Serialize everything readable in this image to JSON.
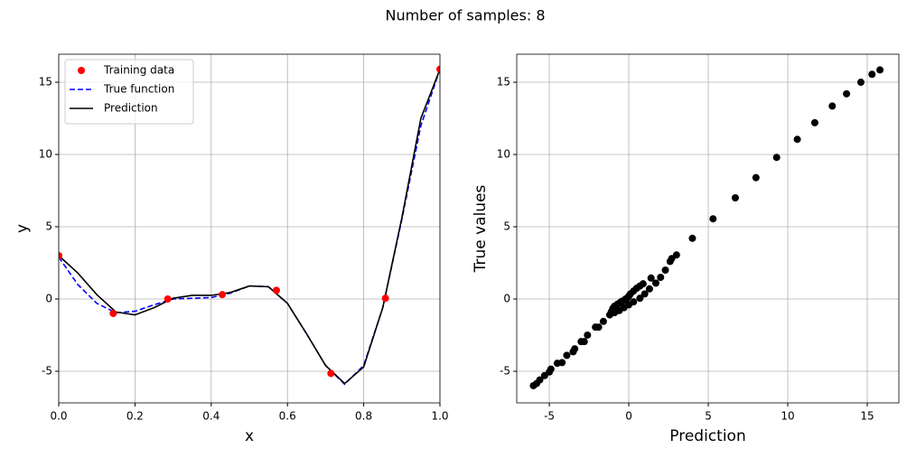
{
  "title": "Number of samples: 8",
  "chart_data": [
    {
      "type": "line",
      "xlabel": "x",
      "ylabel": "y",
      "xlim": [
        0,
        1
      ],
      "ylim": [
        -7.19,
        16.94
      ],
      "xticks": [
        {
          "value": 0,
          "label": "0.0"
        },
        {
          "value": 0.2,
          "label": "0.2"
        },
        {
          "value": 0.4,
          "label": "0.4"
        },
        {
          "value": 0.6,
          "label": "0.6"
        },
        {
          "value": 0.8,
          "label": "0.8"
        },
        {
          "value": 1,
          "label": "1.0"
        }
      ],
      "yticks": [
        -5,
        0,
        5,
        10,
        15
      ],
      "grid": true,
      "legend": "upper left",
      "series": [
        {
          "name": "Training data",
          "color": "#ff0000",
          "style": "markers",
          "x": [
            0,
            0.143,
            0.286,
            0.429,
            0.571,
            0.714,
            0.857,
            1
          ],
          "values": [
            3.0,
            -1.0,
            0.0,
            0.3,
            0.6,
            -5.15,
            0.05,
            15.9
          ]
        },
        {
          "name": "True function",
          "color": "#0000ff",
          "style": "dashed",
          "x": [
            0,
            0.05,
            0.1,
            0.15,
            0.2,
            0.25,
            0.3,
            0.35,
            0.4,
            0.45,
            0.5,
            0.55,
            0.6,
            0.65,
            0.7,
            0.75,
            0.8,
            0.85,
            0.9,
            0.95,
            1
          ],
          "values": [
            2.9,
            1.0,
            -0.3,
            -0.95,
            -0.85,
            -0.4,
            0.0,
            0.05,
            0.1,
            0.4,
            0.9,
            0.85,
            -0.3,
            -2.4,
            -4.6,
            -5.9,
            -4.6,
            -0.6,
            5.5,
            12.0,
            15.9
          ]
        },
        {
          "name": "Prediction",
          "color": "#000000",
          "style": "solid",
          "x": [
            0,
            0.05,
            0.1,
            0.15,
            0.2,
            0.25,
            0.3,
            0.35,
            0.4,
            0.45,
            0.5,
            0.55,
            0.6,
            0.65,
            0.7,
            0.75,
            0.8,
            0.85,
            0.9,
            0.95,
            1
          ],
          "values": [
            3.0,
            1.8,
            0.3,
            -0.9,
            -1.1,
            -0.6,
            0.05,
            0.25,
            0.25,
            0.45,
            0.9,
            0.85,
            -0.3,
            -2.4,
            -4.6,
            -5.85,
            -4.7,
            -0.6,
            5.6,
            12.5,
            15.9
          ]
        }
      ]
    },
    {
      "type": "scatter",
      "xlabel": "Prediction",
      "ylabel": "True values",
      "xlim": [
        -7.05,
        16.99
      ],
      "ylim": [
        -7.19,
        16.94
      ],
      "xticks": [
        -5,
        0,
        5,
        10,
        15
      ],
      "yticks": [
        -5,
        0,
        5,
        10,
        15
      ],
      "grid": true,
      "color": "#000000",
      "x": [
        -6,
        -5.8,
        -5.6,
        -5.3,
        -5,
        -4.9,
        -4.5,
        -4.2,
        -3.9,
        -3.5,
        -3.4,
        -3,
        -2.8,
        -2.6,
        -2.1,
        -1.9,
        -1.6,
        -1.2,
        -1.1,
        -1.05,
        -1,
        -0.9,
        -0.8,
        -0.7,
        -0.6,
        -0.5,
        -0.4,
        -0.3,
        -0.2,
        -0.1,
        0,
        0.1,
        0.3,
        0.5,
        0.7,
        0.9,
        1.4,
        -0.9,
        -0.6,
        -0.3,
        0,
        0.3,
        0.7,
        1,
        1.3,
        1.7,
        2.0,
        2.3,
        2.6,
        2.7,
        3.0,
        4.0,
        5.3,
        6.7,
        8.0,
        9.3,
        10.6,
        11.7,
        12.8,
        13.7,
        14.6,
        15.3,
        15.8
      ],
      "values": [
        -6,
        -5.85,
        -5.6,
        -5.3,
        -5.05,
        -4.85,
        -4.45,
        -4.4,
        -3.9,
        -3.65,
        -3.45,
        -2.95,
        -2.95,
        -2.5,
        -1.95,
        -1.95,
        -1.55,
        -1.1,
        -0.9,
        -0.8,
        -0.65,
        -0.5,
        -0.45,
        -0.35,
        -0.3,
        -0.2,
        -0.15,
        -0.1,
        0,
        0.05,
        0.2,
        0.35,
        0.55,
        0.75,
        0.9,
        1.05,
        1.45,
        -0.95,
        -0.8,
        -0.6,
        -0.4,
        -0.2,
        0.05,
        0.35,
        0.7,
        1.1,
        1.5,
        2.0,
        2.6,
        2.8,
        3.05,
        4.2,
        5.55,
        7.0,
        8.4,
        9.8,
        11.05,
        12.2,
        13.35,
        14.2,
        15.0,
        15.55,
        15.85
      ]
    }
  ]
}
